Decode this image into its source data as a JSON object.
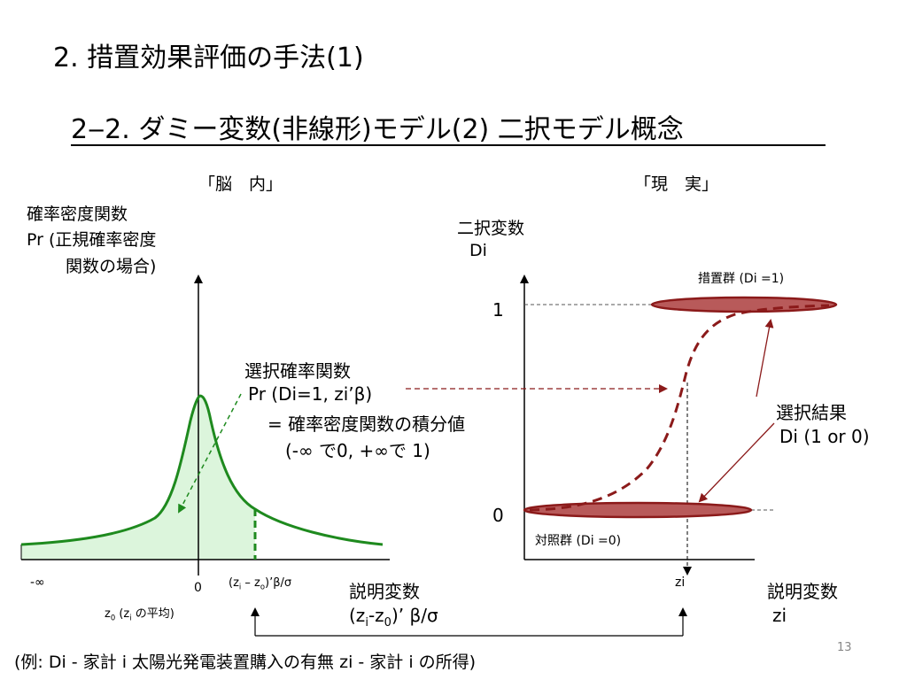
{
  "slide": {
    "title": "2. 措置効果評価の手法(1)",
    "subtitle": "2‒2. ダミー変数(非線形)モデル(2) 二択モデル概念",
    "page_number": "13",
    "footer": "(例:  Di - 家計 i 太陽光発電装置購入の有無  zi - 家計 i の所得)"
  },
  "left_panel": {
    "header": "「脳　内」",
    "y_label_1": "確率密度関数",
    "y_label_2": "Pr  (正規確率密度",
    "y_label_3": "関数の場合)",
    "x_neg_inf": "-∞",
    "x_zero": "0",
    "x_z0": "z",
    "x_z0_sub": "0",
    "x_z0_mid": " (z",
    "x_z0_sub2": "i",
    "x_z0_end": " の平均)",
    "x_point": "(z",
    "x_point_sub1": "i",
    "x_point_mid": " – z",
    "x_point_sub2": "o",
    "x_point_end": ")’β/σ",
    "x_axis_title": "説明変数",
    "x_axis_sub_a": "(z",
    "x_axis_sub_b": "i",
    "x_axis_sub_c": "-z",
    "x_axis_sub_d": "0",
    "x_axis_sub_e": ")’ β/σ"
  },
  "middle_text": {
    "line1": "選択確率関数",
    "line2": "Pr (Di=1, zi’β)",
    "line3": "= 確率密度関数の積分値",
    "line4": "(-∞ で0, +∞で 1)"
  },
  "right_panel": {
    "header": "「現　実」",
    "y_label_1": "二択変数",
    "y_label_2": "Di",
    "group_treated": "措置群 (Di =1)",
    "group_control": "対照群 (Di =0)",
    "tick_one": "1",
    "tick_zero": "0",
    "x_point": "zi",
    "result_1": "選択結果",
    "result_2": "Di (1 or 0)",
    "x_axis_title": "説明変数",
    "x_axis_sub": "zi"
  },
  "colors": {
    "curve_green": "#1e8a1e",
    "fill_green": "#dcf5dc",
    "dark_red": "#8b1a1a",
    "ellipse_fill": "#b85a5a"
  }
}
